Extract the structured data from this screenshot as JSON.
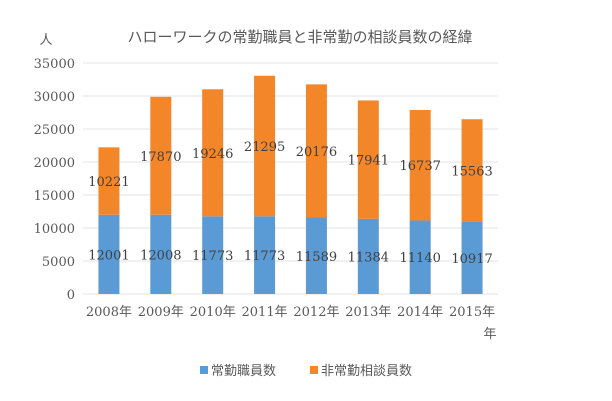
{
  "chart_data": {
    "type": "bar",
    "stacked": true,
    "title": "ハローワークの常勤職員と非常勤の相談員数の経緯",
    "ylabel": "人",
    "xlabel": "年",
    "categories": [
      "2008年",
      "2009年",
      "2010年",
      "2011年",
      "2012年",
      "2013年",
      "2014年",
      "2015年"
    ],
    "series": [
      {
        "name": "常勤職員数",
        "color": "#5B9BD5",
        "values": [
          12001,
          12008,
          11773,
          11773,
          11589,
          11384,
          11140,
          10917
        ]
      },
      {
        "name": "非常勤相談員数",
        "color": "#F4862A",
        "values": [
          10221,
          17870,
          19246,
          21295,
          20176,
          17941,
          16737,
          15563
        ]
      }
    ],
    "ylim": [
      0,
      35000
    ],
    "yticks": [
      0,
      5000,
      10000,
      15000,
      20000,
      25000,
      30000,
      35000
    ],
    "grid": true,
    "legend_position": "bottom"
  }
}
